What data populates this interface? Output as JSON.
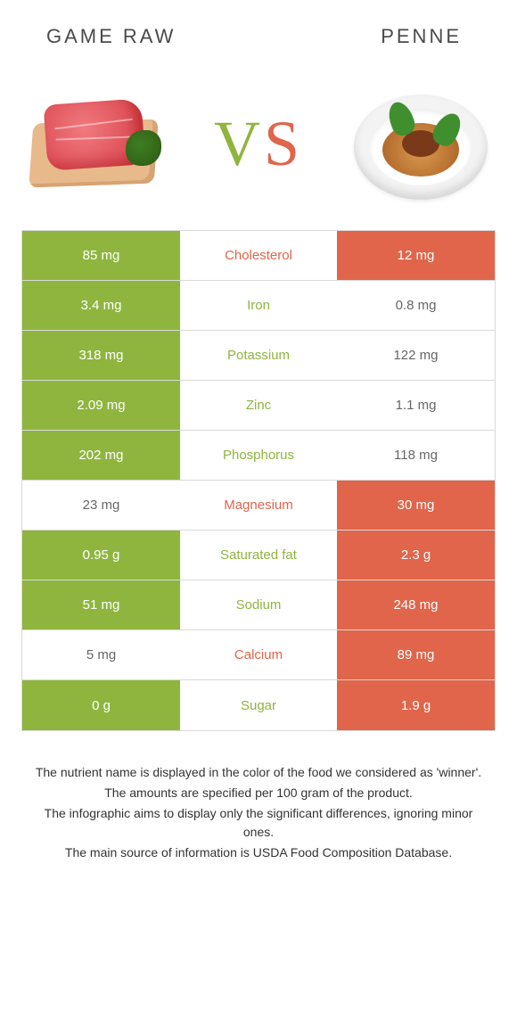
{
  "header": {
    "left_title": "GAME RAW",
    "right_title": "PENNE",
    "vs_text": "VS"
  },
  "colors": {
    "green": "#8fb53f",
    "orange": "#e0654a",
    "vs_v": "#8fb53f",
    "vs_s": "#e0654a",
    "row_border": "#d9d9d9",
    "neutral_bg": "#ffffff",
    "title_text": "#4a4a4a",
    "cell_text": "#ffffff"
  },
  "table": {
    "rows": [
      {
        "nutrient": "Cholesterol",
        "left": "85 mg",
        "right": "12 mg",
        "left_bg": "green",
        "right_bg": "orange",
        "mid_color": "orange"
      },
      {
        "nutrient": "Iron",
        "left": "3.4 mg",
        "right": "0.8 mg",
        "left_bg": "green",
        "right_bg": "neutral",
        "mid_color": "green"
      },
      {
        "nutrient": "Potassium",
        "left": "318 mg",
        "right": "122 mg",
        "left_bg": "green",
        "right_bg": "neutral",
        "mid_color": "green"
      },
      {
        "nutrient": "Zinc",
        "left": "2.09 mg",
        "right": "1.1 mg",
        "left_bg": "green",
        "right_bg": "neutral",
        "mid_color": "green"
      },
      {
        "nutrient": "Phosphorus",
        "left": "202 mg",
        "right": "118 mg",
        "left_bg": "green",
        "right_bg": "neutral",
        "mid_color": "green"
      },
      {
        "nutrient": "Magnesium",
        "left": "23 mg",
        "right": "30 mg",
        "left_bg": "neutral",
        "right_bg": "orange",
        "mid_color": "orange"
      },
      {
        "nutrient": "Saturated fat",
        "left": "0.95 g",
        "right": "2.3 g",
        "left_bg": "green",
        "right_bg": "orange",
        "mid_color": "green"
      },
      {
        "nutrient": "Sodium",
        "left": "51 mg",
        "right": "248 mg",
        "left_bg": "green",
        "right_bg": "orange",
        "mid_color": "green"
      },
      {
        "nutrient": "Calcium",
        "left": "5 mg",
        "right": "89 mg",
        "left_bg": "neutral",
        "right_bg": "orange",
        "mid_color": "orange"
      },
      {
        "nutrient": "Sugar",
        "left": "0 g",
        "right": "1.9 g",
        "left_bg": "green",
        "right_bg": "orange",
        "mid_color": "green"
      }
    ]
  },
  "footnotes": [
    "The nutrient name is displayed in the color of the food we considered as 'winner'.",
    "The amounts are specified per 100 gram of the product.",
    "The infographic aims to display only the significant differences, ignoring minor ones.",
    "The main source of information is USDA Food Composition Database."
  ]
}
